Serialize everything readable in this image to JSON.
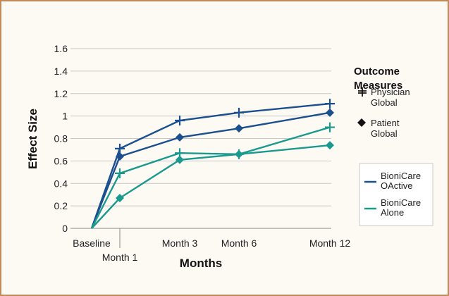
{
  "colors": {
    "frame_border": "#c08a5a",
    "background": "#fdfaf4",
    "gridline": "#c8c8c8",
    "bionicare_oactive": "#1b4f8e",
    "bionicare_alone": "#1a9a8e"
  },
  "chart_data": {
    "type": "line",
    "categories": [
      "Baseline",
      "Month 1",
      "Month 3",
      "Month 6",
      "Month 12"
    ],
    "x": [
      0,
      1,
      3,
      6,
      12
    ],
    "xlabel": "Months",
    "ylabel": "Effect Size",
    "ylim": [
      0,
      1.6
    ],
    "yticks": [
      "0",
      "0.2",
      "0.4",
      "0.6",
      "0.8",
      "1",
      "1.2",
      "1.4",
      "1.6"
    ],
    "grid": true,
    "legend": {
      "placement": "right",
      "marker_title": "Outcome Measures",
      "markers": [
        {
          "label": "Physician Global",
          "lines": [
            "Physician",
            "Global"
          ],
          "marker": "plus"
        },
        {
          "label": "Patient Global",
          "lines": [
            "Patient",
            "Global"
          ],
          "marker": "diamond"
        }
      ],
      "colors": [
        {
          "label": "BioniCare OActive",
          "lines": [
            "BioniCare",
            "OActive"
          ],
          "color": "#1b4f8e"
        },
        {
          "label": "BioniCare Alone",
          "lines": [
            "BioniCare",
            "Alone"
          ],
          "color": "#1a9a8e"
        }
      ]
    },
    "series": [
      {
        "group": "BioniCare OActive",
        "measure": "Physician Global",
        "marker": "plus",
        "color": "#1b4f8e",
        "values": [
          0,
          0.71,
          0.96,
          1.03,
          1.11
        ]
      },
      {
        "group": "BioniCare OActive",
        "measure": "Patient Global",
        "marker": "diamond",
        "color": "#1b4f8e",
        "values": [
          0,
          0.64,
          0.81,
          0.89,
          1.03
        ]
      },
      {
        "group": "BioniCare Alone",
        "measure": "Physician Global",
        "marker": "plus",
        "color": "#1a9a8e",
        "values": [
          0,
          0.49,
          0.67,
          0.66,
          0.9
        ]
      },
      {
        "group": "BioniCare Alone",
        "measure": "Patient Global",
        "marker": "diamond",
        "color": "#1a9a8e",
        "values": [
          0,
          0.27,
          0.61,
          0.66,
          0.74
        ]
      }
    ]
  }
}
